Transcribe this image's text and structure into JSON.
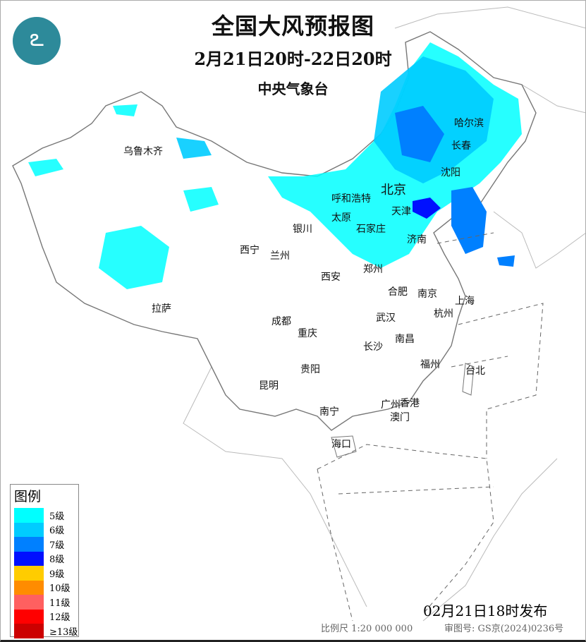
{
  "header": {
    "title": "全国大风预报图",
    "period": "2月21日20时-22日20时",
    "issuer": "中央气象台",
    "logo_icon": "cma-logo"
  },
  "cities": [
    "乌鲁木齐",
    "哈尔滨",
    "长春",
    "沈阳",
    "北京",
    "呼和浩特",
    "天津",
    "太原",
    "石家庄",
    "银川",
    "济南",
    "西宁",
    "兰州",
    "郑州",
    "西安",
    "合肥",
    "南京",
    "上海",
    "拉萨",
    "杭州",
    "武汉",
    "成都",
    "重庆",
    "南昌",
    "长沙",
    "福州",
    "台北",
    "贵阳",
    "昆明",
    "南宁",
    "广州",
    "香港",
    "澳门",
    "海口"
  ],
  "legend": {
    "title": "图例",
    "items": [
      {
        "label": "5级",
        "color": "#00ffff"
      },
      {
        "label": "6级",
        "color": "#00ccff"
      },
      {
        "label": "7级",
        "color": "#0080ff"
      },
      {
        "label": "8级",
        "color": "#0010ff"
      },
      {
        "label": "9级",
        "color": "#ffcc00"
      },
      {
        "label": "10级",
        "color": "#ff8c00"
      },
      {
        "label": "11级",
        "color": "#ff6060"
      },
      {
        "label": "12级",
        "color": "#ff0000"
      },
      {
        "label": "≥13级",
        "color": "#cc0000"
      }
    ]
  },
  "footer": {
    "release": "02月21日18时发布",
    "scale": "比例尺 1:20 000 000",
    "approval": "审图号: GS京(2024)0236号"
  }
}
